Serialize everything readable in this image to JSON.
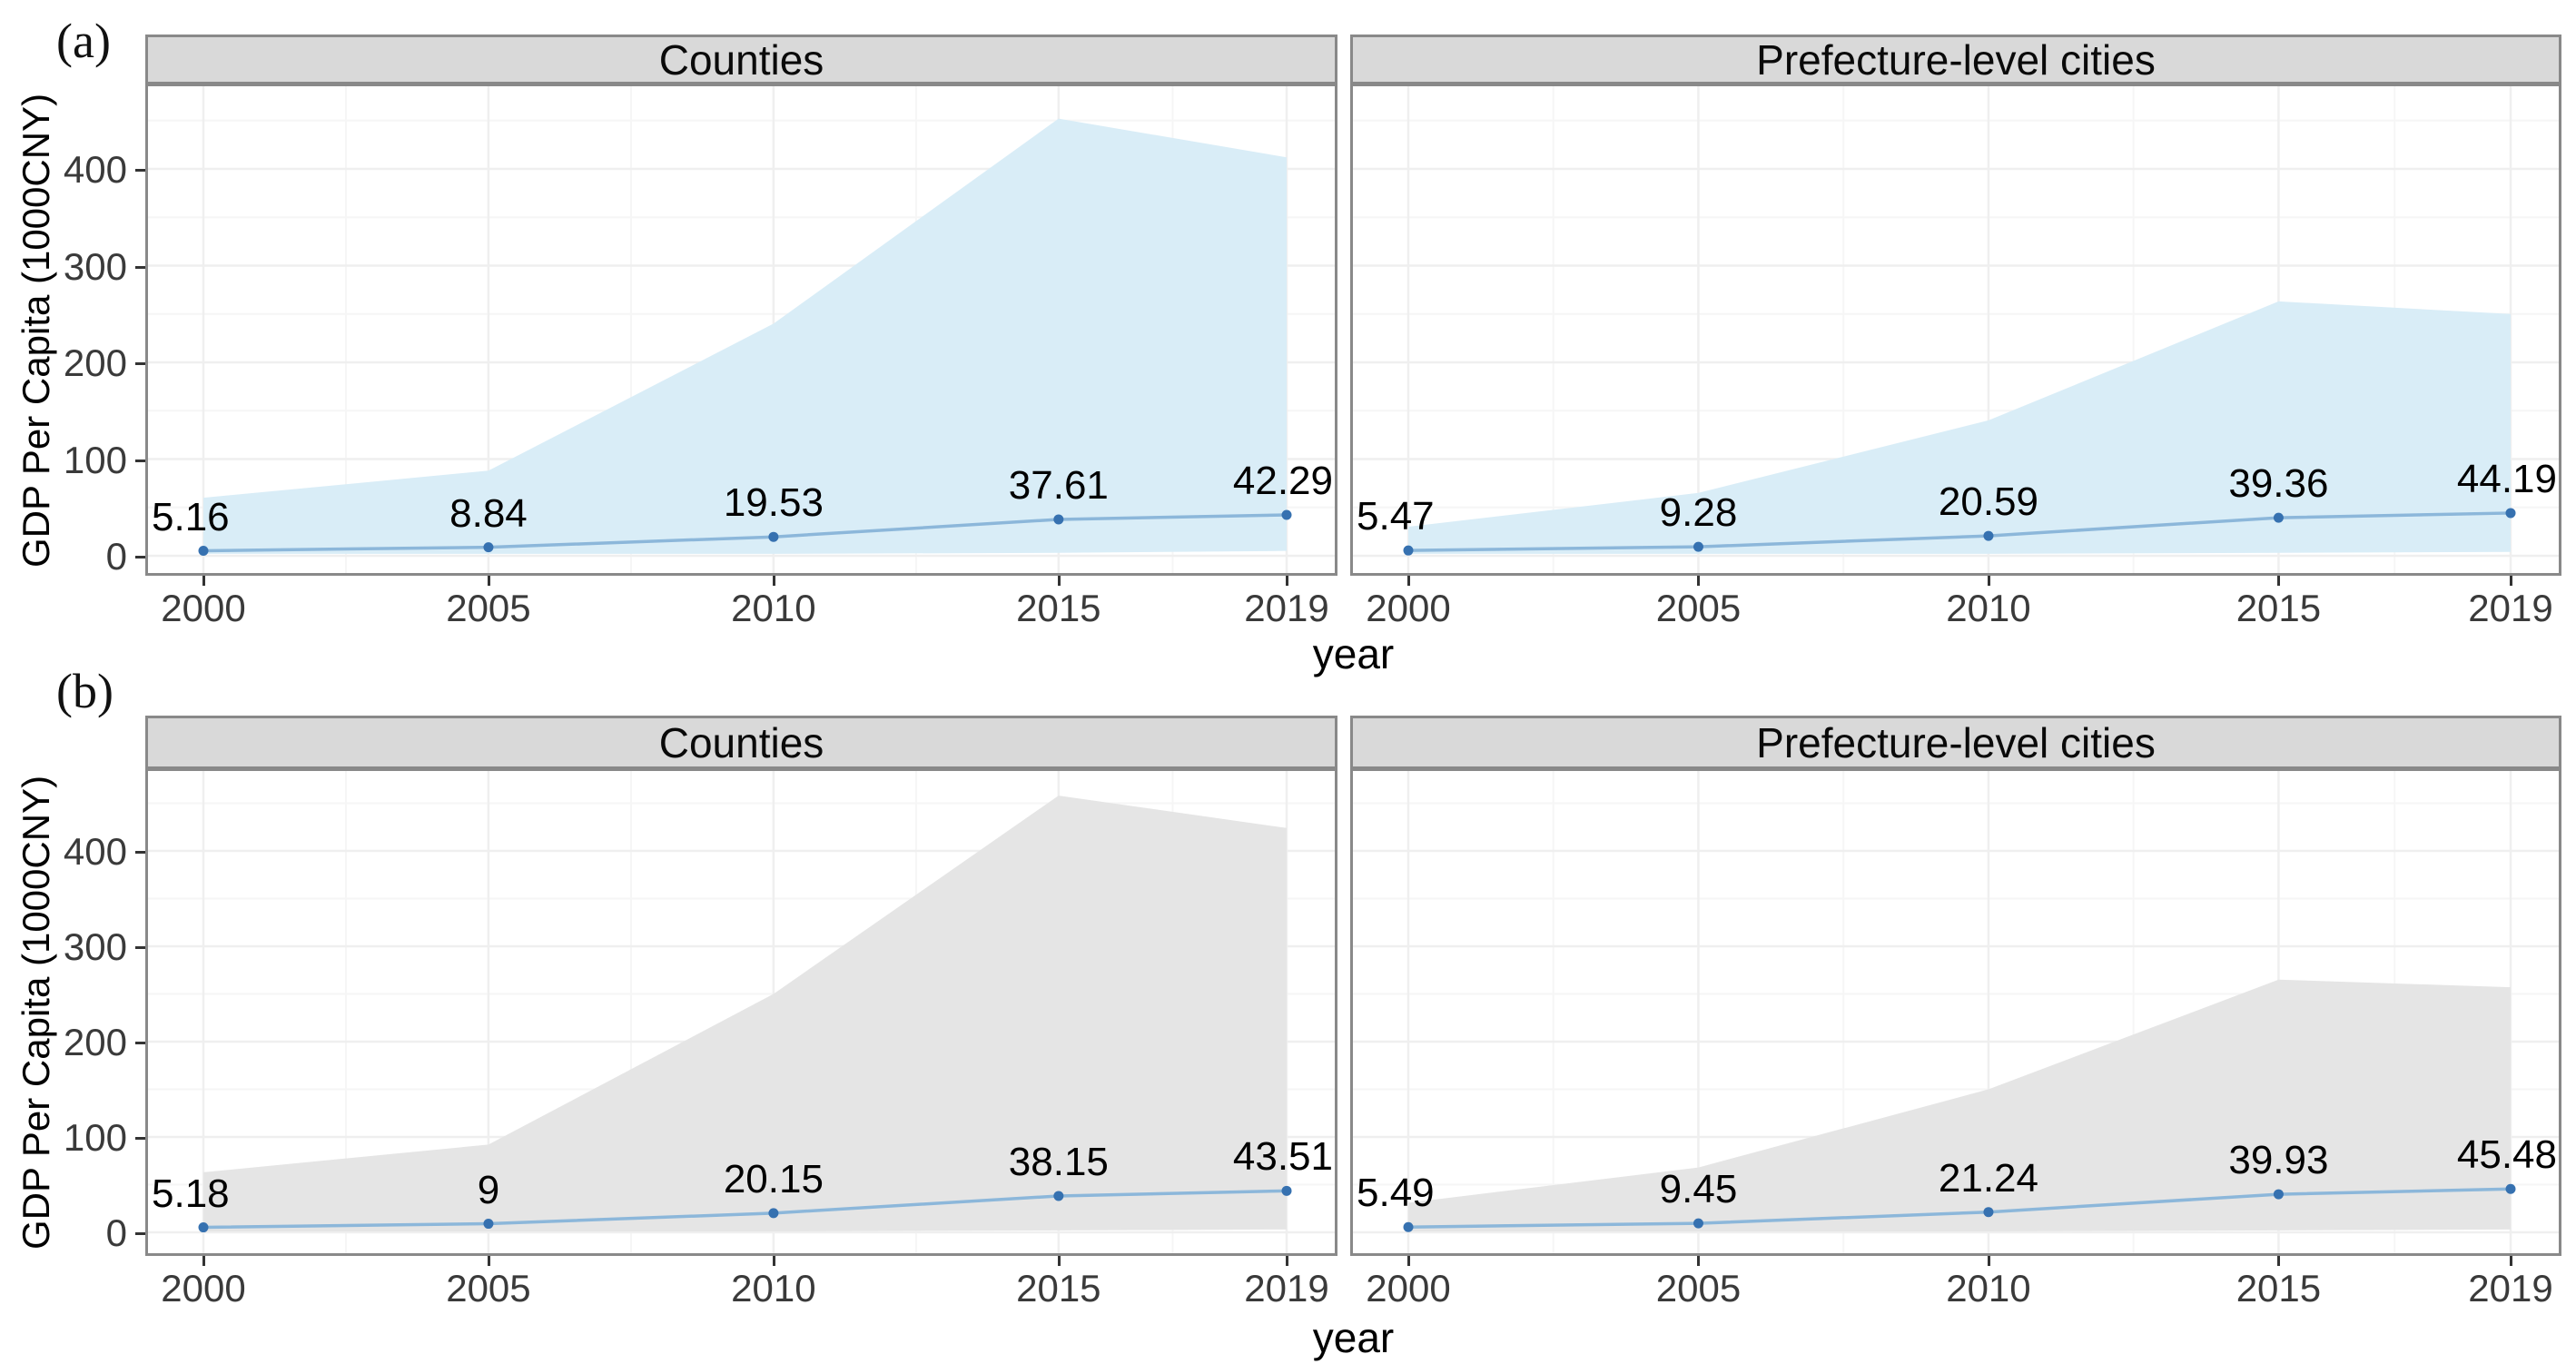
{
  "figure": {
    "panel_tags": [
      "(a)",
      "(b)"
    ],
    "y_axis_label": "GDP Per Capita (1000CNY)",
    "x_axis_label": "year",
    "x_tick_labels": [
      "2000",
      "2005",
      "2010",
      "2015",
      "2019"
    ],
    "y_tick_labels": [
      "0",
      "100",
      "200",
      "300",
      "400"
    ],
    "colors": {
      "strip_bg": "#d9d9d9",
      "panel_border": "#898989",
      "grid_major": "#efefef",
      "grid_minor": "#f6f6f6",
      "ribbon_blue": "#d9edf7",
      "ribbon_gray": "#e5e5e5",
      "mean_line": "#8cb7da",
      "point": "#3671b0",
      "tick_text": "#3a3a3a"
    }
  },
  "chart_data": [
    {
      "type": "area",
      "panel": "(a)",
      "facet": "Counties",
      "x": [
        2000,
        2005,
        2010,
        2015,
        2019
      ],
      "series": [
        {
          "name": "mean GDP per capita",
          "values": [
            5.16,
            8.84,
            19.53,
            37.61,
            42.29
          ]
        },
        {
          "name": "ribbon upper bound",
          "values": [
            60,
            88,
            240,
            452,
            412
          ]
        },
        {
          "name": "ribbon lower bound",
          "values": [
            2,
            2,
            2,
            3,
            5
          ]
        }
      ],
      "point_labels": [
        "5.16",
        "8.84",
        "19.53",
        "37.61",
        "42.29"
      ],
      "xlabel": "year",
      "ylabel": "GDP Per Capita (1000CNY)",
      "xticks": [
        2000,
        2005,
        2010,
        2015,
        2019
      ],
      "yticks": [
        0,
        100,
        200,
        300,
        400
      ],
      "ylim": [
        -25,
        488
      ],
      "grid": "on",
      "legend": "none",
      "ribbon_color": "#d9edf7"
    },
    {
      "type": "area",
      "panel": "(a)",
      "facet": "Prefecture-level cities",
      "x": [
        2000,
        2005,
        2010,
        2015,
        2019
      ],
      "series": [
        {
          "name": "mean GDP per capita",
          "values": [
            5.47,
            9.28,
            20.59,
            39.36,
            44.19
          ]
        },
        {
          "name": "ribbon upper bound",
          "values": [
            30,
            65,
            140,
            263,
            250
          ]
        },
        {
          "name": "ribbon lower bound",
          "values": [
            2,
            2,
            2,
            3,
            4
          ]
        }
      ],
      "point_labels": [
        "5.47",
        "9.28",
        "20.59",
        "39.36",
        "44.19"
      ],
      "xlabel": "year",
      "ylabel": "GDP Per Capita (1000CNY)",
      "xticks": [
        2000,
        2005,
        2010,
        2015,
        2019
      ],
      "yticks": [
        0,
        100,
        200,
        300,
        400
      ],
      "ylim": [
        -25,
        488
      ],
      "grid": "on",
      "legend": "none",
      "ribbon_color": "#d9edf7"
    },
    {
      "type": "area",
      "panel": "(b)",
      "facet": "Counties",
      "x": [
        2000,
        2005,
        2010,
        2015,
        2019
      ],
      "series": [
        {
          "name": "mean GDP per capita",
          "values": [
            5.18,
            9,
            20.15,
            38.15,
            43.51
          ]
        },
        {
          "name": "ribbon upper bound",
          "values": [
            63,
            92,
            250,
            458,
            424
          ]
        },
        {
          "name": "ribbon lower bound",
          "values": [
            1,
            1,
            1,
            2,
            3
          ]
        }
      ],
      "point_labels": [
        "5.18",
        "9",
        "20.15",
        "38.15",
        "43.51"
      ],
      "xlabel": "year",
      "ylabel": "GDP Per Capita (1000CNY)",
      "xticks": [
        2000,
        2005,
        2010,
        2015,
        2019
      ],
      "yticks": [
        0,
        100,
        200,
        300,
        400
      ],
      "ylim": [
        -25,
        487
      ],
      "grid": "on",
      "legend": "none",
      "ribbon_color": "#e5e5e5"
    },
    {
      "type": "area",
      "panel": "(b)",
      "facet": "Prefecture-level cities",
      "x": [
        2000,
        2005,
        2010,
        2015,
        2019
      ],
      "series": [
        {
          "name": "mean GDP per capita",
          "values": [
            5.49,
            9.45,
            21.24,
            39.93,
            45.48
          ]
        },
        {
          "name": "ribbon upper bound",
          "values": [
            31,
            68,
            150,
            265,
            257
          ]
        },
        {
          "name": "ribbon lower bound",
          "values": [
            1,
            1,
            1,
            2,
            3
          ]
        }
      ],
      "point_labels": [
        "5.49",
        "9.45",
        "21.24",
        "39.93",
        "45.48"
      ],
      "xlabel": "year",
      "ylabel": "GDP Per Capita (1000CNY)",
      "xticks": [
        2000,
        2005,
        2010,
        2015,
        2019
      ],
      "yticks": [
        0,
        100,
        200,
        300,
        400
      ],
      "ylim": [
        -25,
        487
      ],
      "grid": "on",
      "legend": "none",
      "ribbon_color": "#e5e5e5"
    }
  ]
}
